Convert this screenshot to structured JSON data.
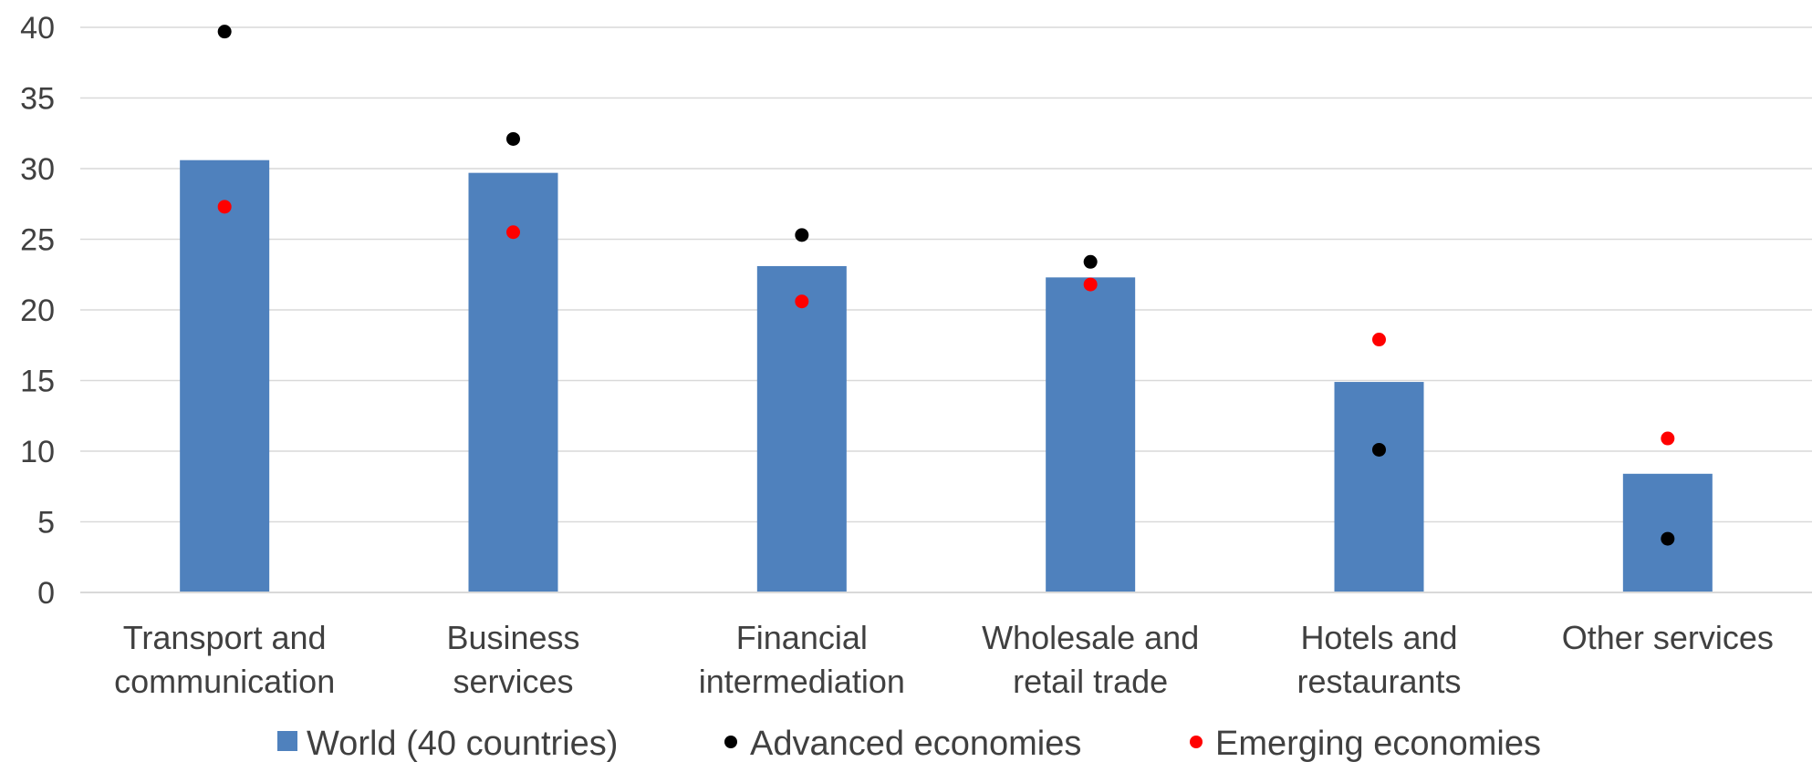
{
  "chart_data": {
    "type": "bar",
    "categories": [
      [
        "Transport and",
        "communication"
      ],
      [
        "Business",
        "services"
      ],
      [
        "Financial",
        "intermediation"
      ],
      [
        "Wholesale and",
        "retail trade"
      ],
      [
        "Hotels and",
        "restaurants"
      ],
      [
        "Other services"
      ]
    ],
    "series": [
      {
        "name": "World (40 countries)",
        "kind": "bar",
        "color": "#4F81BD",
        "values": [
          30.6,
          29.7,
          23.1,
          22.3,
          14.9,
          8.4
        ]
      },
      {
        "name": "Advanced economies",
        "kind": "dot",
        "color": "#000000",
        "values": [
          39.7,
          32.1,
          25.3,
          23.4,
          10.1,
          3.8
        ]
      },
      {
        "name": "Emerging economies",
        "kind": "dot",
        "color": "#FF0000",
        "values": [
          27.3,
          25.5,
          20.6,
          21.8,
          17.9,
          10.9
        ]
      }
    ],
    "yticks": [
      0,
      5,
      10,
      15,
      20,
      25,
      30,
      35,
      40
    ],
    "ylim": [
      0,
      40
    ],
    "grid": true,
    "legend_position": "bottom"
  }
}
